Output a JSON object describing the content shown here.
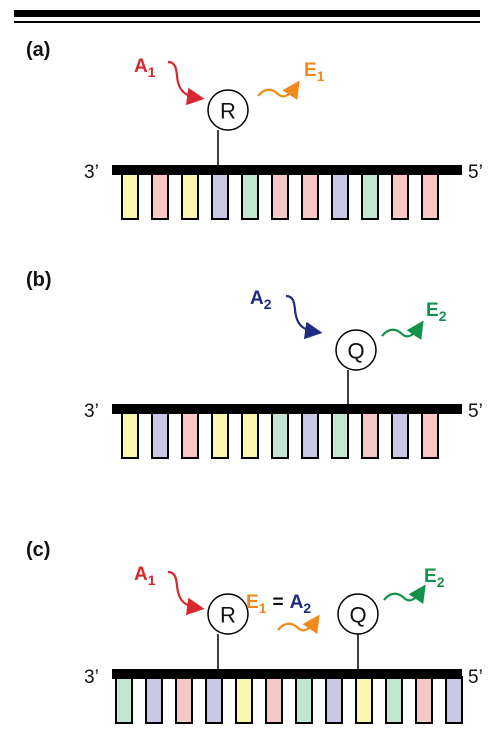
{
  "panels": [
    {
      "label": "(a)",
      "end_left": "3’",
      "end_right": "5’",
      "nodes": [
        "R"
      ],
      "input": {
        "letter": "A",
        "sub": "1"
      },
      "output": {
        "letter": "E",
        "sub": "1"
      }
    },
    {
      "label": "(b)",
      "end_left": "3’",
      "end_right": "5’",
      "nodes": [
        "Q"
      ],
      "input": {
        "letter": "A",
        "sub": "2"
      },
      "output": {
        "letter": "E",
        "sub": "2"
      }
    },
    {
      "label": "(c)",
      "end_left": "3’",
      "end_right": "5’",
      "nodes": [
        "R",
        "Q"
      ],
      "input": {
        "letter": "A",
        "sub": "1"
      },
      "middle": {
        "left": {
          "letter": "E",
          "sub": "1"
        },
        "equals": "=",
        "right": {
          "letter": "A",
          "sub": "2"
        }
      },
      "output": {
        "letter": "E",
        "sub": "2"
      }
    }
  ]
}
